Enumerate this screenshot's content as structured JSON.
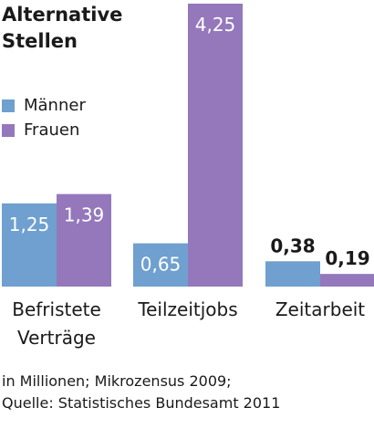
{
  "title_lines": [
    "Alternative",
    "Stellen"
  ],
  "footnote_lines": [
    "in Millionen; Mikrozensus 2009;",
    "Quelle: Statistisches Bundesamt 2011"
  ],
  "colors": {
    "maenner": "#6fa0cf",
    "frauen": "#9478bb",
    "text": "#1a1a1a",
    "label_on_bar": "#ffffff"
  },
  "chart_data": {
    "type": "bar",
    "title": "Alternative Stellen",
    "unit": "in Millionen",
    "categories": [
      {
        "label_lines": [
          "Befristete",
          "Verträge"
        ]
      },
      {
        "label_lines": [
          "Teilzeitjobs"
        ]
      },
      {
        "label_lines": [
          "Zeitarbeit"
        ]
      }
    ],
    "series": [
      {
        "name": "Männer",
        "color": "#6fa0cf",
        "values": [
          1.25,
          0.65,
          0.38
        ],
        "labels": [
          "1,25",
          "0,65",
          "0,38"
        ]
      },
      {
        "name": "Frauen",
        "color": "#9478bb",
        "values": [
          1.39,
          4.25,
          0.19
        ],
        "labels": [
          "1,39",
          "4,25",
          "0,19"
        ]
      }
    ],
    "legend_position": "top-left",
    "grid": false,
    "ylim": [
      0,
      4.25
    ]
  }
}
